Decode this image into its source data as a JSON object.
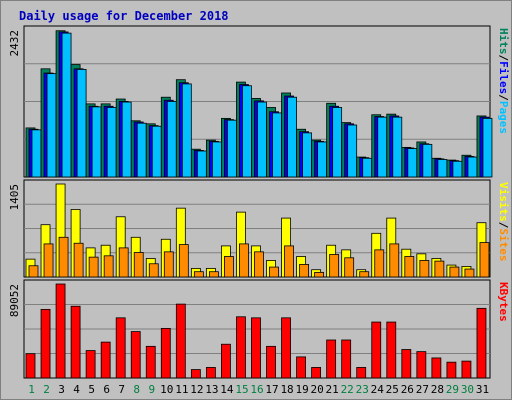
{
  "chart_data": [
    {
      "type": "bar",
      "title": "Daily usage for December 2018",
      "panel": "top",
      "y_max_label": "2432",
      "y_max": 2432,
      "legend": [
        "Pages",
        "Files",
        "Hits"
      ],
      "colors": {
        "Hits": "#00805c",
        "Files": "#0000ff",
        "Pages": "#00c0ff"
      },
      "categories": [
        "1",
        "2",
        "3",
        "4",
        "5",
        "6",
        "7",
        "8",
        "9",
        "10",
        "11",
        "12",
        "13",
        "14",
        "15",
        "16",
        "17",
        "18",
        "19",
        "20",
        "21",
        "22",
        "23",
        "24",
        "25",
        "26",
        "27",
        "28",
        "29",
        "30",
        "31"
      ],
      "series": [
        {
          "name": "Hits",
          "values": [
            812,
            1790,
            2420,
            1860,
            1210,
            1210,
            1290,
            930,
            880,
            1320,
            1610,
            460,
            610,
            970,
            1570,
            1300,
            1150,
            1390,
            790,
            610,
            1220,
            900,
            330,
            1030,
            1040,
            490,
            580,
            310,
            280,
            360,
            1010
          ]
        },
        {
          "name": "Files",
          "values": [
            790,
            1720,
            2400,
            1790,
            1170,
            1170,
            1250,
            910,
            850,
            1270,
            1560,
            440,
            590,
            950,
            1530,
            1260,
            1080,
            1340,
            750,
            590,
            1170,
            880,
            320,
            1000,
            1010,
            480,
            550,
            300,
            270,
            340,
            990
          ]
        },
        {
          "name": "Pages",
          "values": [
            780,
            1710,
            2380,
            1780,
            1160,
            1150,
            1240,
            890,
            840,
            1250,
            1540,
            430,
            580,
            940,
            1510,
            1240,
            1060,
            1320,
            730,
            580,
            1150,
            860,
            310,
            990,
            990,
            470,
            540,
            290,
            260,
            330,
            970
          ]
        }
      ]
    },
    {
      "type": "bar",
      "panel": "middle",
      "y_max_label": "1405",
      "y_max": 1405,
      "legend": [
        "Sites",
        "Visits"
      ],
      "colors": {
        "Visits": "#ffff00",
        "Sites": "#ff8c00"
      },
      "series": [
        {
          "name": "Visits",
          "values": [
            270,
            790,
            1405,
            1020,
            440,
            480,
            910,
            600,
            280,
            570,
            1040,
            130,
            130,
            470,
            980,
            470,
            250,
            890,
            310,
            110,
            480,
            410,
            110,
            660,
            890,
            420,
            350,
            280,
            180,
            160,
            820
          ]
        },
        {
          "name": "Sites",
          "values": [
            170,
            500,
            600,
            510,
            300,
            320,
            440,
            370,
            200,
            380,
            490,
            80,
            80,
            310,
            500,
            380,
            150,
            470,
            190,
            70,
            340,
            290,
            80,
            410,
            500,
            310,
            250,
            240,
            150,
            120,
            520
          ]
        }
      ]
    },
    {
      "type": "bar",
      "panel": "bottom",
      "y_max_label": "89052",
      "y_max": 89052,
      "legend": [
        "KBytes"
      ],
      "colors": {
        "KBytes": "#ff0000"
      },
      "series": [
        {
          "name": "KBytes",
          "values": [
            23000,
            65000,
            89052,
            68000,
            26000,
            34000,
            57000,
            44000,
            30000,
            47000,
            70000,
            8000,
            10000,
            32000,
            58000,
            57000,
            30000,
            57000,
            20000,
            10000,
            36000,
            36000,
            10000,
            53000,
            53000,
            27000,
            25000,
            19000,
            15000,
            16000,
            66000
          ]
        }
      ]
    }
  ],
  "x_tick_colors": {
    "weekday": "#000000",
    "weekend": "#008040"
  },
  "weekend_days": [
    "1",
    "2",
    "8",
    "9",
    "15",
    "16",
    "22",
    "23",
    "29",
    "30"
  ]
}
